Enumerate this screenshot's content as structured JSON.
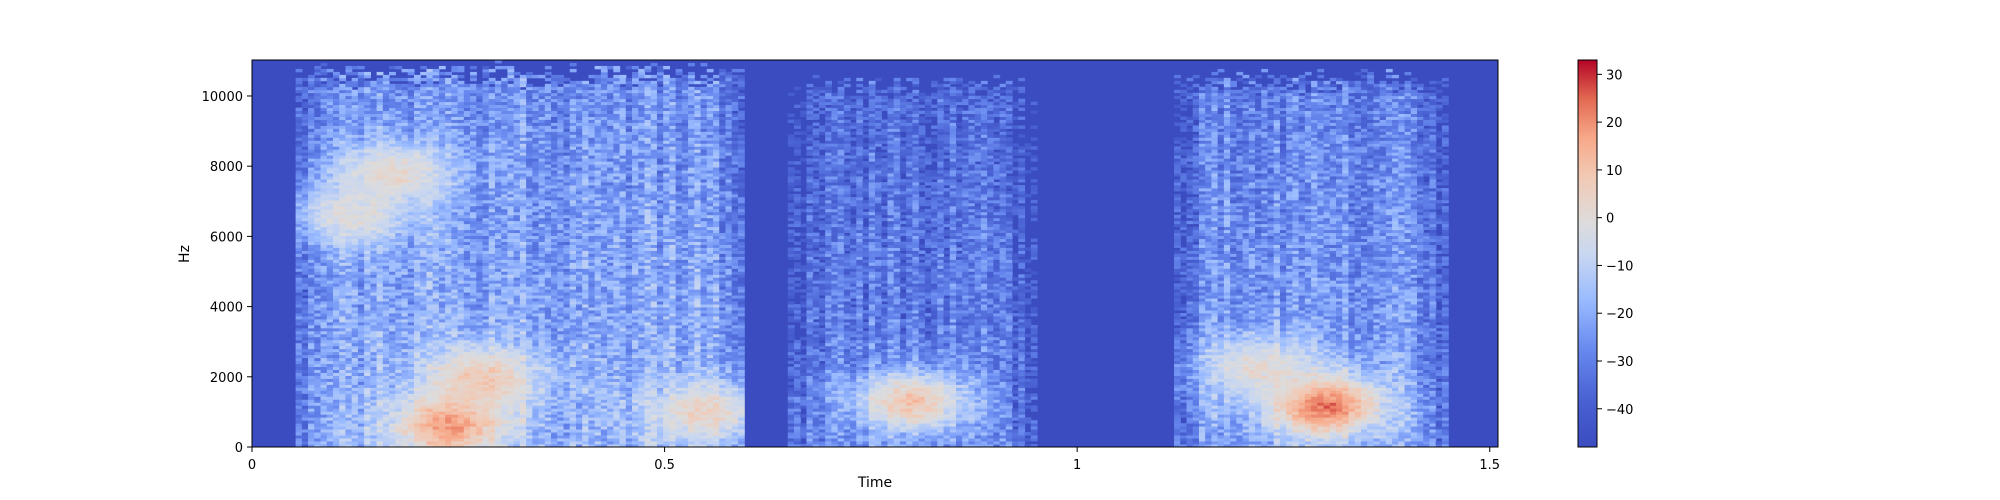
{
  "chart_data": {
    "type": "heatmap",
    "title": "",
    "xlabel": "Time",
    "ylabel": "Hz",
    "xlim": [
      0,
      1.51
    ],
    "ylim": [
      0,
      11025
    ],
    "xticks": [
      0,
      0.5,
      1,
      1.5
    ],
    "xtick_labels": [
      "0",
      "0.5",
      "1",
      "1.5"
    ],
    "yticks": [
      0,
      2000,
      4000,
      6000,
      8000,
      10000
    ],
    "ytick_labels": [
      "0",
      "2000",
      "4000",
      "6000",
      "8000",
      "10000"
    ],
    "colorbar": {
      "cmap": "coolwarm",
      "range": [
        -48,
        33
      ],
      "ticks": [
        30,
        20,
        10,
        0,
        -10,
        -20,
        -30,
        -40
      ],
      "tick_labels": [
        "30",
        "20",
        "10",
        "0",
        "−10",
        "−20",
        "−30",
        "−40"
      ]
    },
    "colors": {
      "low": "#3b4cc0",
      "mid": "#dddcdc",
      "high": "#b40426"
    },
    "segments": [
      {
        "t_start": 0.05,
        "t_end": 0.6,
        "f_max": 10600,
        "level_db": -18
      },
      {
        "t_start": 0.65,
        "t_end": 0.95,
        "f_max": 10300,
        "level_db": -28
      },
      {
        "t_start": 1.12,
        "t_end": 1.45,
        "f_max": 10400,
        "level_db": -22
      }
    ],
    "hotspots": [
      {
        "t": 0.17,
        "f": 7800,
        "level_db": 3
      },
      {
        "t": 0.12,
        "f": 6600,
        "level_db": 0
      },
      {
        "t": 0.28,
        "f": 2000,
        "level_db": 8
      },
      {
        "t": 0.24,
        "f": 600,
        "level_db": 18
      },
      {
        "t": 0.55,
        "f": 1000,
        "level_db": 5
      },
      {
        "t": 0.8,
        "f": 1300,
        "level_db": 10
      },
      {
        "t": 1.3,
        "f": 1200,
        "level_db": 25
      },
      {
        "t": 1.22,
        "f": 2300,
        "level_db": 2
      }
    ]
  }
}
